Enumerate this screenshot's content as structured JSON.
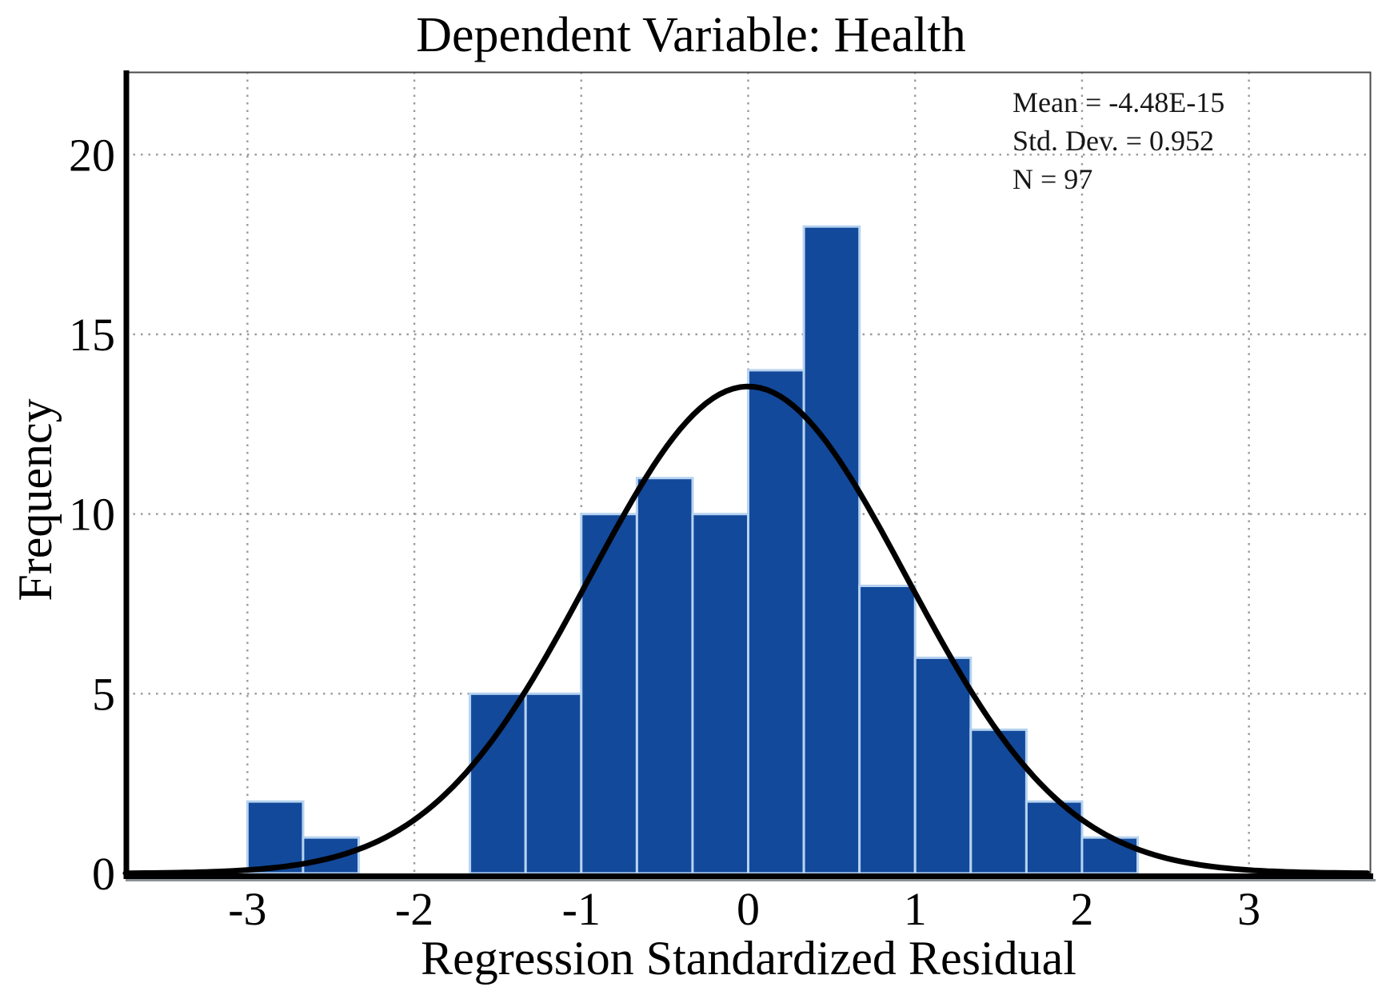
{
  "chart_data": {
    "type": "histogram",
    "title": "Dependent Variable: Health",
    "xlabel": "Regression Standardized Residual",
    "ylabel": "Frequency",
    "bin_start": -3.0,
    "bin_width": 0.333333,
    "frequencies": [
      2,
      1,
      0,
      0,
      5,
      5,
      10,
      11,
      10,
      14,
      18,
      8,
      6,
      4,
      2,
      1
    ],
    "x_ticks": [
      -3,
      -2,
      -1,
      0,
      1,
      2,
      3
    ],
    "y_ticks": [
      0,
      5,
      10,
      15,
      20
    ],
    "xlim": [
      -3.73,
      3.73
    ],
    "ylim": [
      0,
      22.3
    ],
    "grid": "dotted",
    "normal_curve": {
      "mean": -4.48e-15,
      "sd": 0.952,
      "n": 97
    },
    "annotations": [
      "Mean = -4.48E-15",
      "Std. Dev. = 0.952",
      "N = 97"
    ],
    "legend_position": "top-right",
    "colors": {
      "bar_fill": "#12499b",
      "bar_edge": "#b7d3f0",
      "curve": "#000000",
      "grid": "#9a9a9a",
      "axis": "#000000",
      "axis_shadow": "#8c9196",
      "text": "#000000"
    }
  }
}
